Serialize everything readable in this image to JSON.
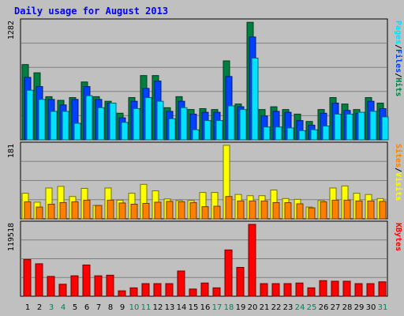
{
  "chart_data": {
    "type": "bar",
    "title": "Daily usage for August 2013",
    "days": [
      "1",
      "2",
      "3",
      "4",
      "5",
      "6",
      "7",
      "8",
      "9",
      "10",
      "11",
      "12",
      "13",
      "14",
      "15",
      "16",
      "17",
      "18",
      "19",
      "20",
      "21",
      "22",
      "23",
      "24",
      "25",
      "26",
      "27",
      "28",
      "29",
      "30",
      "31"
    ],
    "weekend_days": [
      "3",
      "4",
      "10",
      "11",
      "17",
      "18",
      "24",
      "25",
      "31"
    ],
    "panels": [
      {
        "name": "hits",
        "ymax_label": "1282",
        "ymax": 1282,
        "side_label": [
          "Pages",
          "/",
          "Files",
          "/",
          "Hits"
        ],
        "series": [
          {
            "name": "Hits",
            "color": "#008040",
            "values": [
              820,
              730,
              470,
              430,
              460,
              630,
              470,
              420,
              290,
              460,
              700,
              700,
              350,
              470,
              330,
              340,
              330,
              860,
              390,
              1280,
              330,
              360,
              330,
              280,
              200,
              330,
              460,
              390,
              330,
              460,
              400
            ]
          },
          {
            "name": "Files",
            "color": "#0040ff",
            "values": [
              680,
              580,
              440,
              380,
              440,
              580,
              440,
              400,
              240,
              420,
              560,
              640,
              310,
              420,
              280,
              300,
              300,
              690,
              360,
              1120,
              260,
              310,
              300,
              210,
              160,
              290,
              400,
              320,
              290,
              420,
              340
            ]
          },
          {
            "name": "Pages",
            "color": "#00e0ff",
            "values": [
              540,
              440,
              310,
              310,
              180,
              480,
              350,
              400,
              190,
              340,
              460,
              420,
              230,
              350,
              110,
              210,
              210,
              370,
              330,
              890,
              140,
              140,
              130,
              100,
              110,
              150,
              280,
              280,
              300,
              310,
              250
            ]
          }
        ]
      },
      {
        "name": "visits",
        "ymax_label": "181",
        "ymax": 181,
        "side_label": [
          "Sites",
          "/",
          "Visits"
        ],
        "series": [
          {
            "name": "Visits",
            "color": "#ffff00",
            "values": [
              63,
              41,
              76,
              80,
              55,
              75,
              33,
              76,
              46,
              63,
              85,
              69,
              49,
              45,
              45,
              65,
              65,
              181,
              60,
              57,
              57,
              71,
              50,
              48,
              29,
              45,
              76,
              81,
              63,
              60,
              50
            ]
          },
          {
            "name": "Sites",
            "color": "#ff8000",
            "values": [
              42,
              29,
              36,
              40,
              42,
              46,
              33,
              46,
              39,
              36,
              38,
              41,
              43,
              42,
              40,
              30,
              31,
              55,
              44,
              44,
              44,
              40,
              40,
              37,
              27,
              42,
              46,
              46,
              44,
              44,
              43
            ]
          }
        ]
      },
      {
        "name": "kbytes",
        "ymax_label": "119518",
        "ymax": 119518,
        "side_label": [
          "KBytes"
        ],
        "series": [
          {
            "name": "KBytes",
            "color": "#ff0000",
            "values": [
              61000,
              54000,
              33000,
              20000,
              34000,
              52000,
              34000,
              35000,
              9000,
              14000,
              21000,
              21000,
              21000,
              42000,
              12000,
              22000,
              14000,
              77000,
              48000,
              119518,
              21000,
              21000,
              21000,
              22000,
              14000,
              26000,
              25000,
              25000,
              21000,
              21000,
              24000
            ]
          }
        ]
      }
    ]
  }
}
